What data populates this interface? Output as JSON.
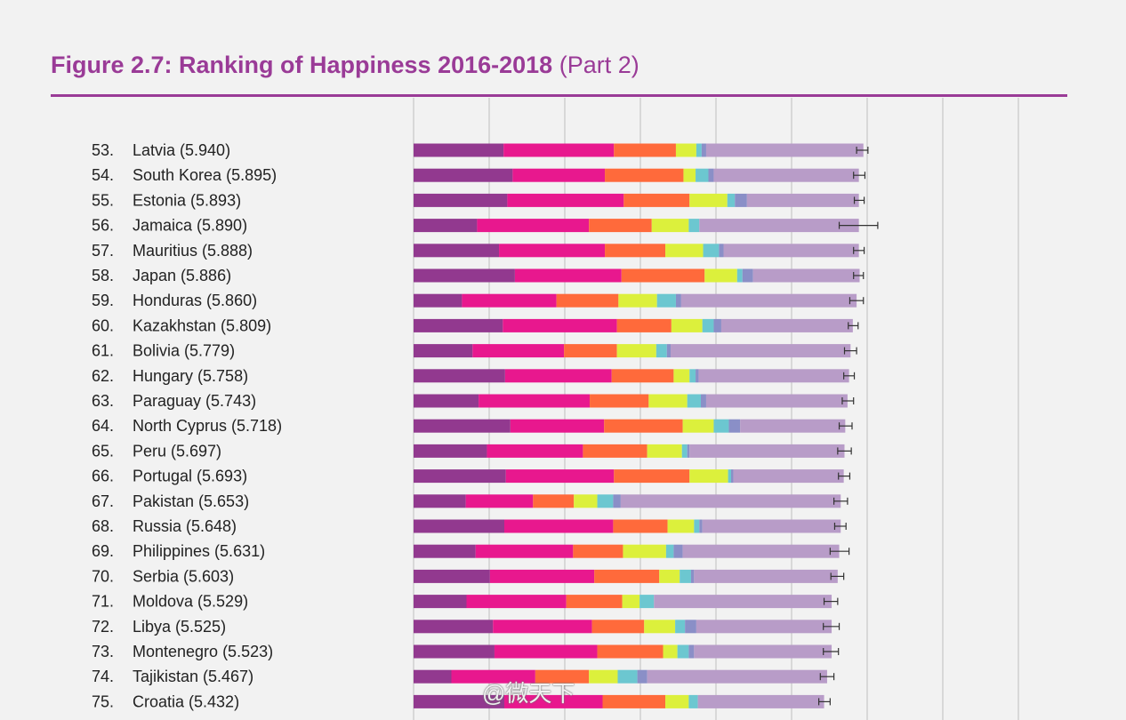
{
  "header": {
    "title_bold": "Figure 2.7: Ranking of Happiness 2016-2018",
    "title_part": " (Part 2)"
  },
  "watermark": {
    "text": "@微天下"
  },
  "colors": {
    "rule": "#9a3b97",
    "segments": [
      "#92398f",
      "#e8188e",
      "#ff6a3b",
      "#dcf03c",
      "#6cc7d0",
      "#8a8fc7",
      "#b89cc8"
    ],
    "gridline": "#cfcfcf",
    "whisker": "#333333"
  },
  "chart_data": {
    "type": "bar",
    "stacked": true,
    "orientation": "horizontal",
    "title": "Figure 2.7: Ranking of Happiness 2016-2018 (Part 2)",
    "xlim": [
      0,
      8
    ],
    "grid": true,
    "rows": [
      {
        "label": "53. Latvia (5.940)",
        "score": 5.94,
        "ci": [
          5.86,
          6.01
        ],
        "segments": [
          1.19,
          1.46,
          0.82,
          0.27,
          0.07,
          0.06,
          2.08
        ]
      },
      {
        "label": "54. South Korea (5.895)",
        "score": 5.895,
        "ci": [
          5.82,
          5.97
        ],
        "segments": [
          1.31,
          1.22,
          1.04,
          0.16,
          0.17,
          0.07,
          1.92
        ]
      },
      {
        "label": "55. Estonia (5.893)",
        "score": 5.893,
        "ci": [
          5.83,
          5.96
        ],
        "segments": [
          1.24,
          1.54,
          0.87,
          0.5,
          0.1,
          0.16,
          1.48
        ]
      },
      {
        "label": "56. Jamaica (5.890)",
        "score": 5.89,
        "ci": [
          5.63,
          6.14
        ],
        "segments": [
          0.84,
          1.48,
          0.83,
          0.49,
          0.14,
          0.0,
          2.11
        ]
      },
      {
        "label": "57. Mauritius (5.888)",
        "score": 5.888,
        "ci": [
          5.82,
          5.96
        ],
        "segments": [
          1.13,
          1.4,
          0.8,
          0.5,
          0.21,
          0.06,
          1.79
        ]
      },
      {
        "label": "58. Japan (5.886)",
        "score": 5.886,
        "ci": [
          5.82,
          5.95
        ],
        "segments": [
          1.34,
          1.41,
          1.1,
          0.43,
          0.07,
          0.14,
          1.41
        ]
      },
      {
        "label": "59. Honduras (5.860)",
        "score": 5.86,
        "ci": [
          5.77,
          5.95
        ],
        "segments": [
          0.64,
          1.25,
          0.82,
          0.51,
          0.25,
          0.07,
          2.32
        ]
      },
      {
        "label": "60. Kazakhstan (5.809)",
        "score": 5.809,
        "ci": [
          5.75,
          5.88
        ],
        "segments": [
          1.18,
          1.51,
          0.72,
          0.41,
          0.15,
          0.1,
          1.74
        ]
      },
      {
        "label": "61. Bolivia (5.779)",
        "score": 5.779,
        "ci": [
          5.7,
          5.86
        ],
        "segments": [
          0.78,
          1.21,
          0.7,
          0.52,
          0.14,
          0.05,
          2.38
        ]
      },
      {
        "label": "62. Hungary (5.758)",
        "score": 5.758,
        "ci": [
          5.69,
          5.83
        ],
        "segments": [
          1.21,
          1.41,
          0.82,
          0.21,
          0.08,
          0.04,
          1.99
        ]
      },
      {
        "label": "63. Paraguay (5.743)",
        "score": 5.743,
        "ci": [
          5.67,
          5.82
        ],
        "segments": [
          0.86,
          1.47,
          0.78,
          0.51,
          0.18,
          0.07,
          1.87
        ]
      },
      {
        "label": "64. North Cyprus (5.718)",
        "score": 5.718,
        "ci": [
          5.63,
          5.8
        ],
        "segments": [
          1.28,
          1.24,
          1.04,
          0.41,
          0.2,
          0.15,
          1.39
        ]
      },
      {
        "label": "65. Peru (5.697)",
        "score": 5.697,
        "ci": [
          5.61,
          5.79
        ],
        "segments": [
          0.97,
          1.27,
          0.85,
          0.46,
          0.07,
          0.03,
          2.05
        ]
      },
      {
        "label": "66. Portugal (5.693)",
        "score": 5.693,
        "ci": [
          5.62,
          5.77
        ],
        "segments": [
          1.22,
          1.43,
          1.0,
          0.51,
          0.04,
          0.03,
          1.46
        ]
      },
      {
        "label": "67. Pakistan (5.653)",
        "score": 5.653,
        "ci": [
          5.56,
          5.74
        ],
        "segments": [
          0.69,
          0.89,
          0.54,
          0.31,
          0.21,
          0.1,
          2.91
        ]
      },
      {
        "label": "68. Russia (5.648)",
        "score": 5.648,
        "ci": [
          5.57,
          5.72
        ],
        "segments": [
          1.2,
          1.44,
          0.72,
          0.35,
          0.07,
          0.04,
          1.83
        ]
      },
      {
        "label": "69. Philippines (5.631)",
        "score": 5.631,
        "ci": [
          5.51,
          5.76
        ],
        "segments": [
          0.82,
          1.29,
          0.66,
          0.57,
          0.1,
          0.12,
          2.07
        ]
      },
      {
        "label": "70. Serbia (5.603)",
        "score": 5.603,
        "ci": [
          5.52,
          5.69
        ],
        "segments": [
          1.01,
          1.38,
          0.86,
          0.27,
          0.15,
          0.04,
          1.9
        ]
      },
      {
        "label": "71. Moldova (5.529)",
        "score": 5.529,
        "ci": [
          5.43,
          5.61
        ],
        "segments": [
          0.7,
          1.32,
          0.74,
          0.23,
          0.19,
          0.0,
          2.35
        ]
      },
      {
        "label": "72. Libya (5.525)",
        "score": 5.525,
        "ci": [
          5.42,
          5.63
        ],
        "segments": [
          1.05,
          1.31,
          0.69,
          0.41,
          0.13,
          0.15,
          1.79
        ]
      },
      {
        "label": "73. Montenegro (5.523)",
        "score": 5.523,
        "ci": [
          5.42,
          5.62
        ],
        "segments": [
          1.07,
          1.36,
          0.87,
          0.19,
          0.15,
          0.07,
          1.82
        ]
      },
      {
        "label": "74. Tajikistan (5.467)",
        "score": 5.467,
        "ci": [
          5.38,
          5.56
        ],
        "segments": [
          0.5,
          1.11,
          0.71,
          0.38,
          0.26,
          0.13,
          2.38
        ]
      },
      {
        "label": "75. Croatia (5.432)",
        "score": 5.432,
        "ci": [
          5.36,
          5.51
        ],
        "segments": [
          1.2,
          1.3,
          0.83,
          0.31,
          0.12,
          0.0,
          1.67
        ]
      }
    ]
  }
}
